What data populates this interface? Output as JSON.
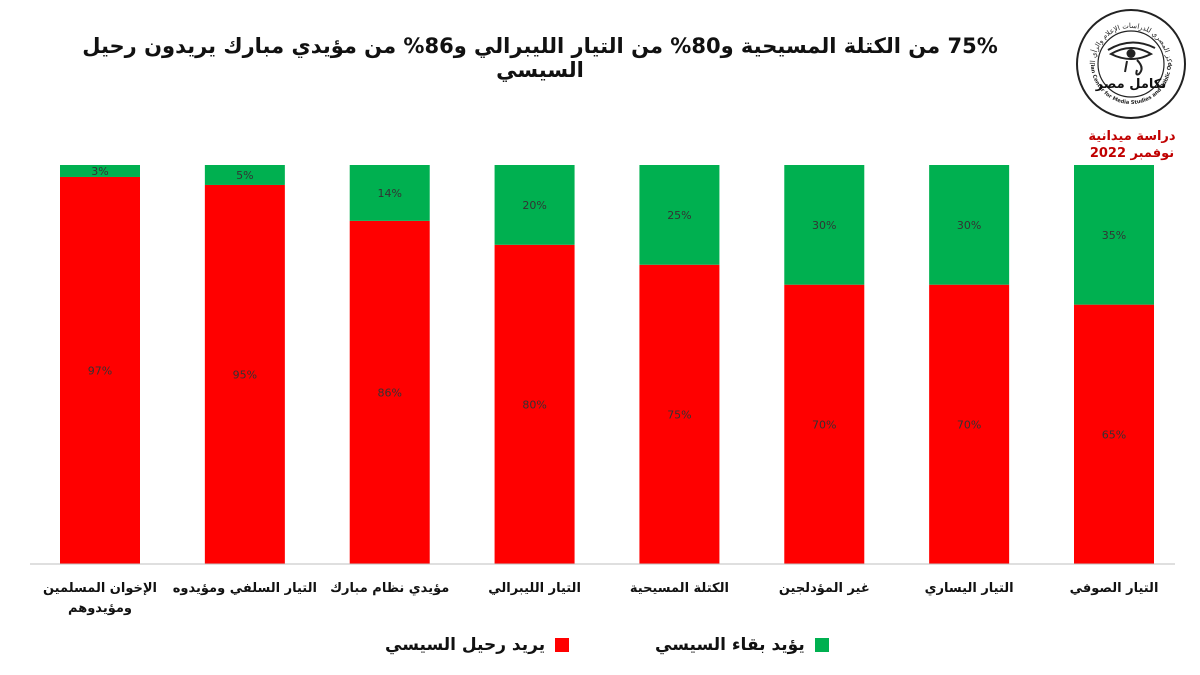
{
  "header": {
    "title": "75% من الكتلة المسيحية و80% من التيار الليبرالي و86% من مؤيدي مبارك يريدون رحيل السيسي",
    "study_line1": "دراسة ميدانية",
    "study_line2": "نوفمبر 2022"
  },
  "logo": {
    "arabic_top": "المركز المصري للدراسات الإعلام والرأي العام",
    "brand": "تكامل مصر",
    "english": "Egyptian Center for Media Studies and Public Opinion"
  },
  "colors": {
    "leave": "#ff0000",
    "stay": "#00b050",
    "study_text": "#c00000"
  },
  "legend": [
    {
      "label": "يريد رحيل السيسي",
      "color": "#ff0000"
    },
    {
      "label": "يؤيد بقاء السيسي",
      "color": "#00b050"
    }
  ],
  "chart_data": {
    "type": "bar",
    "stacked": true,
    "direction": "rtl",
    "categories": [
      "التيار الصوفي",
      "التيار اليساري",
      "غير المؤدلجين",
      "الكتلة المسيحية",
      "التيار الليبرالي",
      "مؤيدي نظام مبارك",
      "التيار السلفي ومؤيدوه",
      "الإخوان المسلمين ومؤيدوهم"
    ],
    "series": [
      {
        "name": "يريد رحيل السيسي",
        "color": "#ff0000",
        "values": [
          65,
          70,
          70,
          75,
          80,
          86,
          95,
          97
        ]
      },
      {
        "name": "يؤيد بقاء السيسي",
        "color": "#00b050",
        "values": [
          35,
          30,
          30,
          25,
          20,
          14,
          5,
          3
        ]
      }
    ],
    "value_format": "{v}%",
    "ylim": [
      0,
      100
    ],
    "grid": false,
    "legend_position": "bottom"
  }
}
